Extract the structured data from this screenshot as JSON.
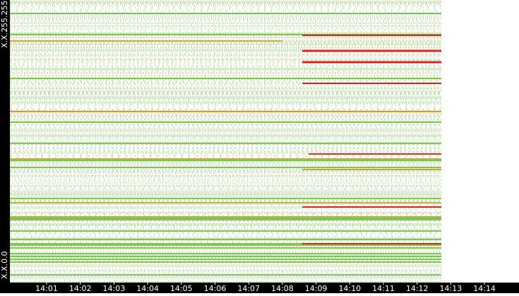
{
  "y_axis": {
    "top_label": "X.X.255.255",
    "bottom_label": "X.X.0.0"
  },
  "x_axis": {
    "ticks": [
      "14:01",
      "14:02",
      "14:03",
      "14:04",
      "14:05",
      "14:06",
      "14:07",
      "14:08",
      "14:09",
      "14:10",
      "14:11",
      "14:12",
      "14:13",
      "14:14"
    ]
  }
}
